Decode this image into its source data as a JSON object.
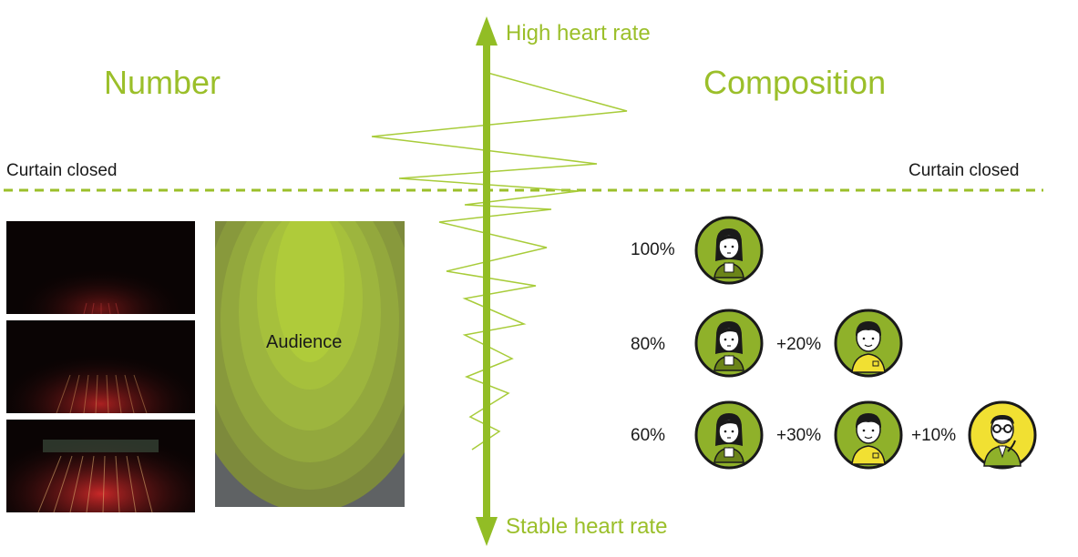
{
  "titles": {
    "left": "Number",
    "right": "Composition"
  },
  "axis": {
    "top_label": "High heart rate",
    "bottom_label": "Stable heart rate"
  },
  "curtain": {
    "left": "Curtain closed",
    "right": "Curtain closed"
  },
  "audience_label": "Audience",
  "colors": {
    "accent": "#9bbf2a",
    "dark_green": "#5e6e1a",
    "yellow": "#f1e032"
  },
  "composition": {
    "rows": [
      {
        "percent": "100%",
        "extras": []
      },
      {
        "percent": "80%",
        "extras": [
          {
            "label": "+20%",
            "avatar": "boy-avatar-icon"
          }
        ]
      },
      {
        "percent": "60%",
        "extras": [
          {
            "label": "+30%",
            "avatar": "boy-avatar-icon"
          },
          {
            "label": "+10%",
            "avatar": "man-glasses-avatar-icon"
          }
        ]
      }
    ]
  }
}
